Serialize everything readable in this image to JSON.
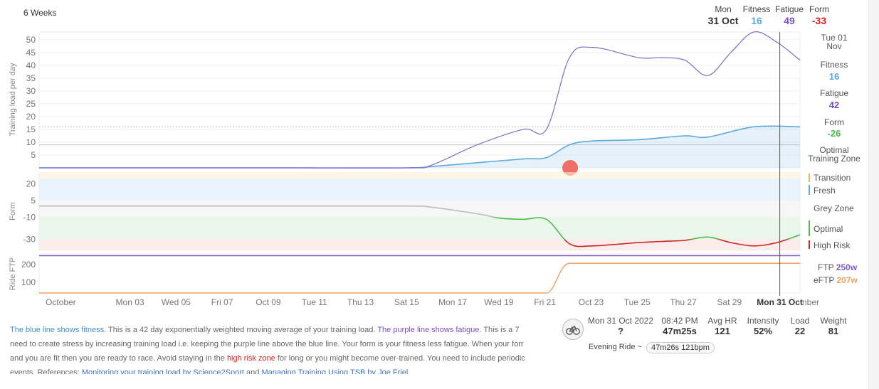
{
  "header": {
    "range_label": "6 Weeks",
    "date_label": "Mon",
    "date_value": "31 Oct",
    "fitness_label": "Fitness",
    "fitness_value": "16",
    "fatigue_label": "Fatigue",
    "fatigue_value": "49",
    "form_label": "Form",
    "form_value": "-33"
  },
  "sidebar": {
    "date": [
      "Tue 01",
      "Nov"
    ],
    "fitness_label": "Fitness",
    "fitness_value": "16",
    "fatigue_label": "Fatigue",
    "fatigue_value": "42",
    "form_label": "Form",
    "form_value": "-26",
    "optimal_zone": [
      "Optimal",
      "Training Zone"
    ],
    "zones": {
      "transition": "Transition",
      "fresh": "Fresh",
      "grey": "Grey Zone",
      "optimal": "Optimal",
      "high_risk": "High Risk"
    },
    "ftp_label": "FTP",
    "ftp_value": "250w",
    "eftp_label": "eFTP",
    "eftp_value": "207w"
  },
  "colors": {
    "fitness": "#5aa9e0",
    "fatigue": "#7f6bc9",
    "form_grey": "#bdbdbd",
    "form_optimal": "#4cbc4c",
    "form_high_risk": "#c8281e",
    "transition": "#e8b84a",
    "fresh": "#5ab0e0",
    "ftp": "#7b5fc9",
    "eftp": "#f0a060",
    "red_dot": "#ee5f58"
  },
  "chart_data": [
    {
      "type": "line",
      "name": "training-load",
      "ylabel": "Training load per day",
      "ylim": [
        0,
        53
      ],
      "yticks": [
        5,
        10,
        15,
        20,
        25,
        30,
        35,
        40,
        45,
        50
      ],
      "x_start": "2022-09-29",
      "x_end": "2022-11-01",
      "series": [
        {
          "name": "Fitness",
          "x": [
            "2022-09-29",
            "2022-10-05",
            "2022-10-10",
            "2022-10-15",
            "2022-10-16",
            "2022-10-18",
            "2022-10-20",
            "2022-10-21",
            "2022-10-22",
            "2022-10-23",
            "2022-10-25",
            "2022-10-27",
            "2022-10-28",
            "2022-10-30",
            "2022-11-01"
          ],
          "values": [
            0,
            0,
            0,
            0,
            0.5,
            2,
            3.5,
            4,
            9,
            10.5,
            11,
            12.5,
            12,
            16,
            16
          ]
        },
        {
          "name": "Fatigue",
          "x": [
            "2022-09-29",
            "2022-10-05",
            "2022-10-10",
            "2022-10-15",
            "2022-10-16",
            "2022-10-18",
            "2022-10-20",
            "2022-10-21",
            "2022-10-22",
            "2022-10-23",
            "2022-10-25",
            "2022-10-26",
            "2022-10-27",
            "2022-10-28",
            "2022-10-29",
            "2022-10-30",
            "2022-10-31",
            "2022-11-01"
          ],
          "values": [
            0,
            0,
            0,
            0,
            1,
            9,
            15,
            15,
            43,
            47,
            43,
            43,
            42,
            36,
            45,
            53,
            49,
            42
          ]
        }
      ],
      "reference_lines": [
        {
          "y": 16,
          "style": "dotted"
        },
        {
          "y": 9,
          "style": "solid"
        }
      ]
    },
    {
      "type": "line",
      "name": "form",
      "ylabel": "Form",
      "ylim": [
        -40,
        30
      ],
      "yticks": [
        20,
        5,
        -10,
        -30
      ],
      "zones": [
        {
          "name": "Transition",
          "from": 25,
          "to": 30
        },
        {
          "name": "Fresh",
          "from": 5,
          "to": 25
        },
        {
          "name": "Grey Zone",
          "from": -10,
          "to": 5
        },
        {
          "name": "Optimal",
          "from": -30,
          "to": -10
        },
        {
          "name": "High Risk",
          "from": -40,
          "to": -30
        }
      ],
      "series": [
        {
          "name": "Form",
          "x": [
            "2022-09-29",
            "2022-10-05",
            "2022-10-10",
            "2022-10-15",
            "2022-10-16",
            "2022-10-18",
            "2022-10-19",
            "2022-10-20",
            "2022-10-21",
            "2022-10-22",
            "2022-10-23",
            "2022-10-25",
            "2022-10-26",
            "2022-10-27",
            "2022-10-28",
            "2022-10-29",
            "2022-10-30",
            "2022-10-31",
            "2022-11-01"
          ],
          "values": [
            0,
            0,
            0,
            0,
            -1,
            -7,
            -11,
            -12,
            -12,
            -34,
            -36,
            -33,
            -32,
            -31,
            -28,
            -33,
            -36,
            -33,
            -26
          ]
        }
      ]
    },
    {
      "type": "line",
      "name": "ride-ftp",
      "ylabel": "Ride FTP",
      "ylim": [
        40,
        260
      ],
      "yticks": [
        200,
        100
      ],
      "series": [
        {
          "name": "FTP",
          "x": [
            "2022-09-29",
            "2022-11-01"
          ],
          "values": [
            250,
            250
          ]
        },
        {
          "name": "eFTP",
          "x": [
            "2022-09-29",
            "2022-10-21",
            "2022-10-22",
            "2022-11-01"
          ],
          "values": [
            40,
            40,
            207,
            207
          ]
        }
      ]
    }
  ],
  "x_axis": {
    "ticks": [
      {
        "date": "2022-09-30",
        "label": "October"
      },
      {
        "date": "2022-10-03",
        "label": "Mon 03"
      },
      {
        "date": "2022-10-05",
        "label": "Wed 05"
      },
      {
        "date": "2022-10-07",
        "label": "Fri 07"
      },
      {
        "date": "2022-10-09",
        "label": "Oct 09"
      },
      {
        "date": "2022-10-11",
        "label": "Tue 11"
      },
      {
        "date": "2022-10-13",
        "label": "Thu 13"
      },
      {
        "date": "2022-10-15",
        "label": "Sat 15"
      },
      {
        "date": "2022-10-17",
        "label": "Mon 17"
      },
      {
        "date": "2022-10-19",
        "label": "Wed 19"
      },
      {
        "date": "2022-10-21",
        "label": "Fri 21"
      },
      {
        "date": "2022-10-23",
        "label": "Oct 23"
      },
      {
        "date": "2022-10-25",
        "label": "Tue 25"
      },
      {
        "date": "2022-10-27",
        "label": "Thu 27"
      },
      {
        "date": "2022-10-29",
        "label": "Sat 29"
      }
    ],
    "cursor_date": "2022-10-31",
    "cursor_label": "Mon 31 Oct",
    "trailing_label": "nber",
    "red_dot_date": "2022-10-22"
  },
  "description": {
    "p1_blue": "The blue line shows fitness.",
    "p1_a": " This is a 42 day exponentially weighted moving average of your training load. ",
    "p1_purple": "The purple line shows fatigue.",
    "p1_b": " This is a 7",
    "line2": "need to create stress by increasing training load i.e. keeping the purple line above the blue line. Your form is your fitness less fatigue. When your forr",
    "line3_a": "and you are fit then you are ready to race. Avoid staying in the ",
    "line3_red": "high risk zone",
    "line3_b": " for long or you might become over-trained. You need to include periodic",
    "line4_a": "events. References: ",
    "link1": "Monitoring your training load by Science2Sport",
    "line4_b": " and ",
    "link2": "Managing Training Using TSB by Joe Friel"
  },
  "activity": {
    "icon": "bike-icon",
    "date_label": "Mon 31 Oct 2022",
    "date_value": "?",
    "time_label": "08:42 PM",
    "time_value": "47m25s",
    "hr_label": "Avg HR",
    "hr_value": "121",
    "intensity_label": "Intensity",
    "intensity_value": "52%",
    "load_label": "Load",
    "load_value": "22",
    "weight_label": "Weight",
    "weight_value": "81",
    "ride_name": "Evening Ride ~",
    "ride_summary": "47m26s 121bpm"
  }
}
